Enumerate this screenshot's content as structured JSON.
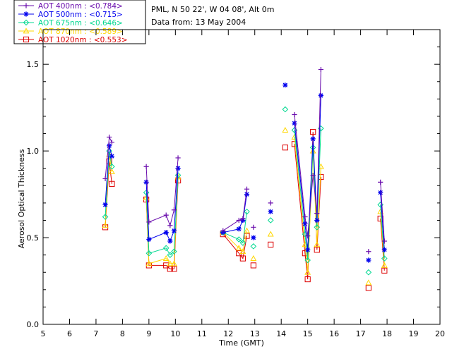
{
  "chart_data": {
    "type": "scatter",
    "title": "PML, N 50 22', W 04 08', Alt 0m",
    "subtitle": "Data from: 13 May 2004",
    "xlabel": "Time (GMT)",
    "ylabel": "Aerosol Optical Thickness",
    "xlim": [
      5,
      20
    ],
    "ylim": [
      0,
      1.7
    ],
    "xticks": [
      5,
      6,
      7,
      8,
      9,
      10,
      11,
      12,
      13,
      14,
      15,
      16,
      17,
      18,
      19,
      20
    ],
    "yticks": [
      0.0,
      0.5,
      1.0,
      1.5
    ],
    "ytick_labels": [
      "0.0",
      "0.5",
      "1.0",
      "1.5"
    ],
    "x": [
      7.35,
      7.5,
      7.6,
      8.9,
      9.0,
      9.65,
      9.8,
      9.95,
      10.1,
      11.8,
      12.4,
      12.55,
      12.7,
      12.95,
      13.6,
      14.15,
      14.5,
      14.9,
      15.0,
      15.2,
      15.35,
      15.5,
      17.3,
      17.75,
      17.9
    ],
    "segments": [
      [
        0,
        2
      ],
      [
        3,
        8
      ],
      [
        9,
        12
      ],
      [
        16,
        21
      ],
      [
        23,
        24
      ]
    ],
    "series": [
      {
        "name": "AOT 400nm",
        "mean": "0.784",
        "color": "#6a0dad",
        "marker": "plus",
        "values": [
          0.84,
          1.08,
          1.05,
          0.91,
          0.59,
          0.63,
          0.57,
          0.66,
          0.96,
          0.54,
          0.6,
          0.61,
          0.78,
          0.56,
          0.7,
          null,
          1.21,
          0.62,
          0.51,
          0.86,
          0.64,
          1.47,
          0.42,
          0.82,
          0.48
        ]
      },
      {
        "name": "AOT 500nm",
        "mean": "0.715",
        "color": "#0000ee",
        "marker": "star",
        "values": [
          0.69,
          1.03,
          0.97,
          0.82,
          0.49,
          0.53,
          0.48,
          0.54,
          0.9,
          0.53,
          0.55,
          0.6,
          0.75,
          0.5,
          0.65,
          1.38,
          1.16,
          0.58,
          0.43,
          1.07,
          0.6,
          1.32,
          0.37,
          0.76,
          0.43
        ]
      },
      {
        "name": "AOT 675nm",
        "mean": "0.646",
        "color": "#00d890",
        "marker": "diamond",
        "values": [
          0.62,
          1.0,
          0.91,
          0.76,
          0.41,
          0.44,
          0.4,
          0.42,
          0.86,
          0.53,
          0.49,
          0.47,
          0.65,
          0.45,
          0.6,
          1.24,
          1.12,
          0.52,
          0.37,
          1.02,
          0.56,
          1.13,
          0.3,
          0.69,
          0.38
        ]
      },
      {
        "name": "AOT 870nm",
        "mean": "0.589",
        "color": "#ffd700",
        "marker": "triangle",
        "values": [
          0.57,
          0.98,
          0.88,
          0.73,
          0.35,
          0.38,
          0.35,
          0.35,
          0.85,
          0.53,
          0.44,
          0.42,
          0.54,
          0.38,
          0.52,
          1.12,
          1.08,
          0.46,
          0.3,
          1.0,
          0.46,
          0.91,
          0.24,
          0.65,
          0.34
        ]
      },
      {
        "name": "AOT 1020nm",
        "mean": "0.553",
        "color": "#dd0000",
        "marker": "square",
        "values": [
          0.56,
          0.94,
          0.81,
          0.72,
          0.34,
          0.34,
          0.32,
          0.32,
          0.83,
          0.52,
          0.41,
          0.38,
          0.51,
          0.34,
          0.46,
          1.02,
          1.04,
          0.41,
          0.26,
          1.11,
          0.43,
          0.85,
          0.21,
          0.61,
          0.31
        ]
      }
    ]
  }
}
